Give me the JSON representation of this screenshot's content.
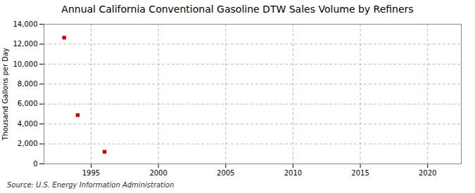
{
  "chart_data": {
    "type": "scatter",
    "title": "Annual California Conventional Gasoline DTW Sales Volume by Refiners",
    "ylabel": "Thousand Gallons per Day",
    "source": "Source: U.S. Energy Information Administration",
    "x": [
      1993,
      1994,
      1996
    ],
    "values": [
      12649,
      4887,
      1212
    ],
    "color": "#cc0000",
    "marker": "square",
    "xlim": [
      1991.5,
      2022.5
    ],
    "xticks": [
      1995,
      2000,
      2005,
      2010,
      2015,
      2020
    ],
    "ylim": [
      0,
      14000
    ],
    "yticks": [
      0,
      {
        "value": 2000,
        "label": "2,000"
      },
      {
        "value": 4000,
        "label": "4,000"
      },
      {
        "value": 6000,
        "label": "6,000"
      },
      {
        "value": 8000,
        "label": "8,000"
      },
      {
        "value": 10000,
        "label": "10,000"
      },
      {
        "value": 12000,
        "label": "12,000"
      },
      {
        "value": 14000,
        "label": "14,000"
      }
    ],
    "grid": true
  }
}
